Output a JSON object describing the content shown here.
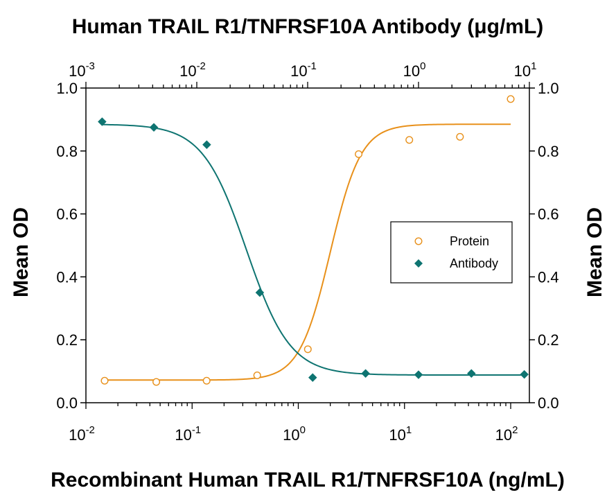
{
  "chart_data": {
    "type": "scatter",
    "title": "Human TRAIL R1/TNFRSF10A Antibody (μg/mL)",
    "xlabel": "Recombinant Human TRAIL R1/TNFRSF10A (ng/mL)",
    "ylabel_left": "Mean OD",
    "ylabel_right": "Mean OD",
    "x_scale": "log",
    "x_bottom": {
      "lim": [
        0.01,
        150
      ],
      "tick_base": "10",
      "tick_exponents": [
        "-2",
        "-1",
        "0",
        "1",
        "2"
      ]
    },
    "x_top": {
      "lim": [
        0.001,
        10
      ],
      "tick_base": "10",
      "tick_exponents": [
        "-3",
        "-2",
        "-1",
        "0",
        "1"
      ]
    },
    "ylim": [
      0,
      1.0
    ],
    "y_ticks": [
      "0.0",
      "0.2",
      "0.4",
      "0.6",
      "0.8",
      "1.0"
    ],
    "grid": false,
    "legend_position": "middle-right",
    "series": [
      {
        "name": "Protein",
        "axis": "bottom",
        "marker": "open-circle",
        "color": "#E8901A",
        "points": [
          {
            "x": 0.015,
            "y": 0.07
          },
          {
            "x": 0.046,
            "y": 0.066
          },
          {
            "x": 0.137,
            "y": 0.07
          },
          {
            "x": 0.41,
            "y": 0.087
          },
          {
            "x": 1.23,
            "y": 0.17
          },
          {
            "x": 3.7,
            "y": 0.79
          },
          {
            "x": 11.1,
            "y": 0.835
          },
          {
            "x": 33.3,
            "y": 0.845
          },
          {
            "x": 100,
            "y": 0.965
          }
        ],
        "fit": {
          "bottom": 0.072,
          "top": 0.885,
          "ec50": 2.0,
          "hill": 3.0
        }
      },
      {
        "name": "Antibody",
        "axis": "top",
        "marker": "filled-diamond",
        "color": "#0E7471",
        "points": [
          {
            "x": 0.0014,
            "y": 0.893
          },
          {
            "x": 0.0041,
            "y": 0.875
          },
          {
            "x": 0.0123,
            "y": 0.82
          },
          {
            "x": 0.037,
            "y": 0.35
          },
          {
            "x": 0.111,
            "y": 0.08
          },
          {
            "x": 0.333,
            "y": 0.093
          },
          {
            "x": 1.0,
            "y": 0.089
          },
          {
            "x": 3.0,
            "y": 0.093
          },
          {
            "x": 9.0,
            "y": 0.09
          }
        ],
        "fit": {
          "bottom": 0.088,
          "top": 0.885,
          "ec50": 0.028,
          "hill": 2.2
        }
      }
    ]
  }
}
